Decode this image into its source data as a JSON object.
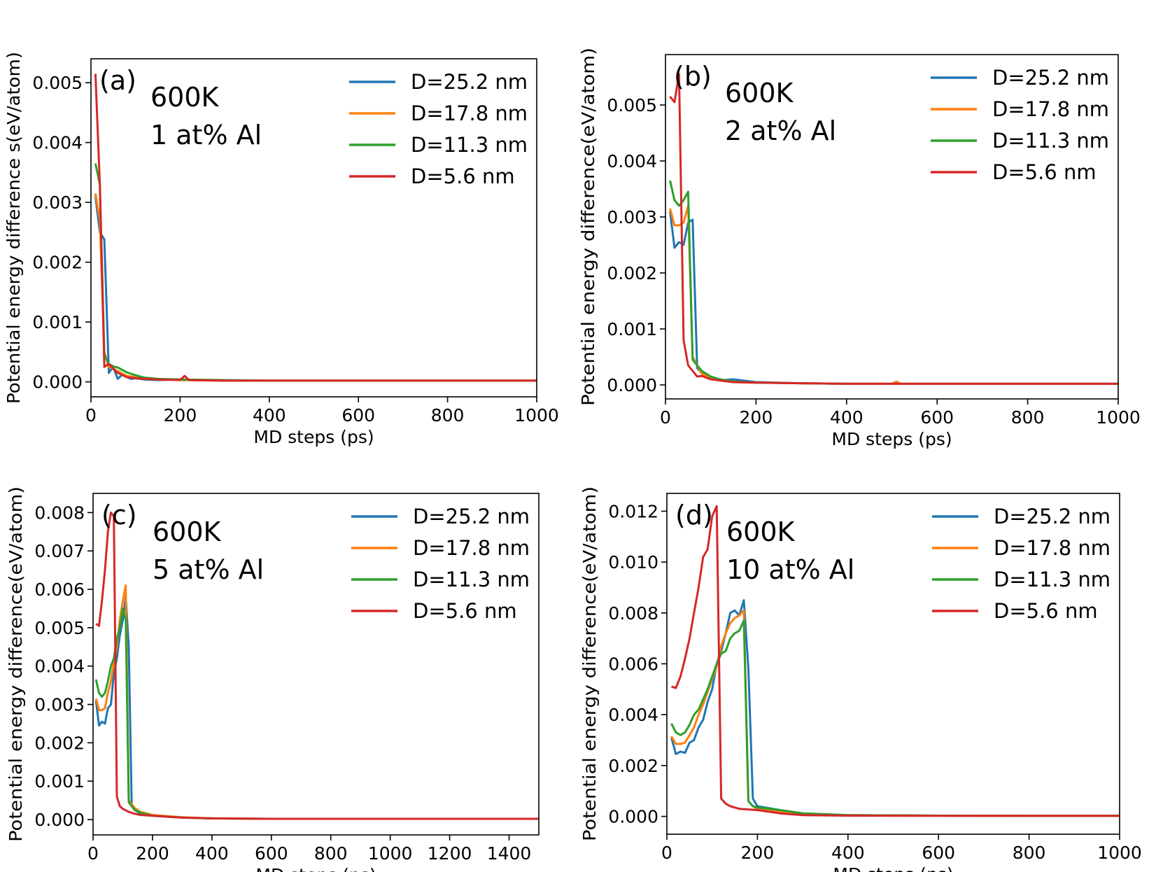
{
  "chart_data": [
    {
      "type": "line",
      "panel_label": "(a)",
      "annotation": [
        "600K",
        "1 at% Al"
      ],
      "xlabel": "MD steps (ps)",
      "ylabel": "Potential energy difference s(eV/atom)",
      "xlim": [
        0,
        1000
      ],
      "ylim": [
        -0.00025,
        0.0054
      ],
      "xticks": [
        0,
        200,
        400,
        600,
        800,
        1000
      ],
      "xtick_labels": [
        "0",
        "200",
        "400",
        "600",
        "800",
        "1000"
      ],
      "yticks": [
        0,
        0.001,
        0.002,
        0.003,
        0.004,
        0.005
      ],
      "ytick_labels": [
        "0.000",
        "0.001",
        "0.002",
        "0.003",
        "0.004",
        "0.005"
      ],
      "legend_position": "top-right",
      "series": [
        {
          "name": "D=25.2 nm",
          "color": "#1f77b4",
          "x": [
            10,
            20,
            30,
            40,
            50,
            60,
            70,
            80,
            90,
            100,
            120,
            150,
            200,
            300,
            400,
            600,
            800,
            1000
          ],
          "y": [
            0.0031,
            0.0025,
            0.00238,
            0.00015,
            0.00025,
            5e-05,
            0.00012,
            8e-05,
            5e-05,
            6e-05,
            4e-05,
            3e-05,
            4e-05,
            2e-05,
            2e-05,
            2e-05,
            2e-05,
            2e-05
          ]
        },
        {
          "name": "D=17.8 nm",
          "color": "#ff7f0e",
          "x": [
            10,
            20,
            30,
            40,
            50,
            60,
            70,
            80,
            100,
            120,
            150,
            200,
            300,
            400,
            600,
            800,
            1000
          ],
          "y": [
            0.00315,
            0.0027,
            0.0005,
            0.00025,
            0.00022,
            0.00018,
            0.00014,
            0.0001,
            8e-05,
            5e-05,
            4e-05,
            3e-05,
            2e-05,
            2e-05,
            2e-05,
            2e-05,
            2e-05
          ]
        },
        {
          "name": "D=11.3 nm",
          "color": "#2ca02c",
          "x": [
            10,
            20,
            30,
            40,
            50,
            60,
            70,
            80,
            100,
            120,
            150,
            200,
            300,
            400,
            600,
            800,
            1000
          ],
          "y": [
            0.00365,
            0.0033,
            0.00045,
            0.0003,
            0.00026,
            0.00024,
            0.0002,
            0.00016,
            0.00011,
            7e-05,
            5e-05,
            4e-05,
            3e-05,
            2e-05,
            2e-05,
            2e-05,
            2e-05
          ]
        },
        {
          "name": "D=5.6 nm",
          "color": "#d62728",
          "x": [
            10,
            20,
            30,
            40,
            50,
            60,
            80,
            100,
            150,
            200,
            210,
            220,
            300,
            400,
            600,
            800,
            1000
          ],
          "y": [
            0.00515,
            0.0033,
            0.00025,
            0.0003,
            0.00022,
            0.00015,
            8e-05,
            6e-05,
            4e-05,
            3e-05,
            0.0001,
            3e-05,
            2e-05,
            2e-05,
            2e-05,
            2e-05,
            2e-05
          ]
        }
      ]
    },
    {
      "type": "line",
      "panel_label": "(b)",
      "annotation": [
        "600K",
        "2 at% Al"
      ],
      "xlabel": "MD steps (ps)",
      "ylabel": "Potential energy difference(eV/atom)",
      "xlim": [
        0,
        1000
      ],
      "ylim": [
        -0.00025,
        0.0059
      ],
      "xticks": [
        0,
        200,
        400,
        600,
        800,
        1000
      ],
      "xtick_labels": [
        "0",
        "200",
        "400",
        "600",
        "800",
        "1000"
      ],
      "yticks": [
        0,
        0.001,
        0.002,
        0.003,
        0.004,
        0.005
      ],
      "ytick_labels": [
        "0.000",
        "0.001",
        "0.002",
        "0.003",
        "0.004",
        "0.005"
      ],
      "legend_position": "top-right",
      "series": [
        {
          "name": "D=25.2 nm",
          "color": "#1f77b4",
          "x": [
            10,
            20,
            30,
            40,
            50,
            60,
            70,
            80,
            90,
            100,
            120,
            150,
            200,
            300,
            400,
            600,
            800,
            1000
          ],
          "y": [
            0.0031,
            0.00245,
            0.00255,
            0.0025,
            0.0029,
            0.00295,
            0.0003,
            0.00022,
            0.00018,
            0.00012,
            8e-05,
            0.0001,
            5e-05,
            3e-05,
            2e-05,
            2e-05,
            2e-05,
            2e-05
          ]
        },
        {
          "name": "D=17.8 nm",
          "color": "#ff7f0e",
          "x": [
            10,
            20,
            30,
            40,
            50,
            60,
            70,
            80,
            100,
            120,
            150,
            200,
            300,
            400,
            500,
            510,
            520,
            600,
            800,
            1000
          ],
          "y": [
            0.00315,
            0.00285,
            0.00285,
            0.0029,
            0.0032,
            0.0005,
            0.00035,
            0.0002,
            0.00012,
            8e-05,
            5e-05,
            4e-05,
            3e-05,
            2e-05,
            2e-05,
            6e-05,
            2e-05,
            2e-05,
            2e-05,
            2e-05
          ]
        },
        {
          "name": "D=11.3 nm",
          "color": "#2ca02c",
          "x": [
            10,
            20,
            30,
            40,
            50,
            60,
            70,
            80,
            100,
            120,
            150,
            200,
            300,
            400,
            600,
            800,
            1000
          ],
          "y": [
            0.00365,
            0.0033,
            0.0032,
            0.0033,
            0.00345,
            0.00045,
            0.00035,
            0.00025,
            0.00015,
            0.0001,
            6e-05,
            4e-05,
            3e-05,
            2e-05,
            2e-05,
            2e-05,
            2e-05
          ]
        },
        {
          "name": "D=5.6 nm",
          "color": "#d62728",
          "x": [
            10,
            20,
            30,
            40,
            50,
            60,
            70,
            80,
            100,
            120,
            150,
            200,
            300,
            400,
            600,
            800,
            1000
          ],
          "y": [
            0.00515,
            0.00505,
            0.00555,
            0.0008,
            0.00035,
            0.00025,
            0.00015,
            0.00016,
            0.0001,
            8e-05,
            5e-05,
            4e-05,
            3e-05,
            2e-05,
            2e-05,
            2e-05,
            2e-05
          ]
        }
      ]
    },
    {
      "type": "line",
      "panel_label": "(c)",
      "annotation": [
        "600K",
        "5 at% Al"
      ],
      "xlabel": "MD steps (ps)",
      "ylabel": "Potential energy difference(eV/atom)",
      "xlim": [
        0,
        1500
      ],
      "ylim": [
        -0.0004,
        0.0085
      ],
      "xticks": [
        0,
        200,
        400,
        600,
        800,
        1000,
        1200,
        1400
      ],
      "xtick_labels": [
        "0",
        "200",
        "400",
        "600",
        "800",
        "1000",
        "1200",
        "1400"
      ],
      "yticks": [
        0,
        0.001,
        0.002,
        0.003,
        0.004,
        0.005,
        0.006,
        0.007,
        0.008
      ],
      "ytick_labels": [
        "0.000",
        "0.001",
        "0.002",
        "0.003",
        "0.004",
        "0.005",
        "0.006",
        "0.007",
        "0.008"
      ],
      "legend_position": "top-right",
      "series": [
        {
          "name": "D=25.2 nm",
          "color": "#1f77b4",
          "x": [
            10,
            20,
            30,
            40,
            50,
            60,
            70,
            80,
            90,
            100,
            110,
            120,
            130,
            140,
            160,
            200,
            300,
            400,
            600,
            800,
            1000,
            1200,
            1500
          ],
          "y": [
            0.0031,
            0.00245,
            0.00255,
            0.0025,
            0.0029,
            0.003,
            0.0038,
            0.0042,
            0.0048,
            0.0052,
            0.0058,
            0.0045,
            0.0004,
            0.00025,
            0.00015,
            0.0001,
            5e-05,
            3e-05,
            2e-05,
            2e-05,
            2e-05,
            2e-05,
            2e-05
          ]
        },
        {
          "name": "D=17.8 nm",
          "color": "#ff7f0e",
          "x": [
            10,
            20,
            30,
            40,
            50,
            60,
            70,
            80,
            90,
            100,
            110,
            120,
            130,
            140,
            160,
            200,
            300,
            400,
            600,
            800,
            1000,
            1200,
            1500
          ],
          "y": [
            0.00315,
            0.00285,
            0.00285,
            0.0029,
            0.0033,
            0.0036,
            0.0041,
            0.0045,
            0.0052,
            0.0057,
            0.0061,
            0.0005,
            0.0004,
            0.0003,
            0.0002,
            0.00012,
            6e-05,
            3e-05,
            2e-05,
            2e-05,
            2e-05,
            2e-05,
            2e-05
          ]
        },
        {
          "name": "D=11.3 nm",
          "color": "#2ca02c",
          "x": [
            10,
            20,
            30,
            40,
            50,
            60,
            70,
            80,
            90,
            100,
            110,
            120,
            130,
            140,
            160,
            200,
            300,
            400,
            600,
            800,
            1000,
            1200,
            1500
          ],
          "y": [
            0.00365,
            0.0033,
            0.0032,
            0.0033,
            0.0036,
            0.004,
            0.0042,
            0.0047,
            0.005,
            0.0055,
            0.0052,
            0.00045,
            0.00035,
            0.00025,
            0.00018,
            0.0001,
            5e-05,
            3e-05,
            2e-05,
            2e-05,
            2e-05,
            2e-05,
            2e-05
          ]
        },
        {
          "name": "D=5.6 nm",
          "color": "#d62728",
          "x": [
            10,
            20,
            30,
            40,
            50,
            60,
            70,
            80,
            90,
            100,
            120,
            140,
            160,
            200,
            300,
            400,
            600,
            800,
            1000,
            1200,
            1500
          ],
          "y": [
            0.0051,
            0.00505,
            0.0057,
            0.0065,
            0.0075,
            0.008,
            0.0079,
            0.0006,
            0.00035,
            0.00028,
            0.0002,
            0.00015,
            0.00012,
            0.0001,
            5e-05,
            3e-05,
            2e-05,
            2e-05,
            2e-05,
            2e-05,
            2e-05
          ]
        }
      ]
    },
    {
      "type": "line",
      "panel_label": "(d)",
      "annotation": [
        "600K",
        "10 at% Al"
      ],
      "xlabel": "MD steps (ps)",
      "ylabel": "Potential energy difference(eV/atom)",
      "xlim": [
        0,
        1000
      ],
      "ylim": [
        -0.0007,
        0.0127
      ],
      "xticks": [
        0,
        200,
        400,
        600,
        800,
        1000
      ],
      "xtick_labels": [
        "0",
        "200",
        "400",
        "600",
        "800",
        "1000"
      ],
      "yticks": [
        0,
        0.002,
        0.004,
        0.006,
        0.008,
        0.01,
        0.012
      ],
      "ytick_labels": [
        "0.000",
        "0.002",
        "0.004",
        "0.006",
        "0.008",
        "0.010",
        "0.012"
      ],
      "legend_position": "top-right",
      "series": [
        {
          "name": "D=25.2 nm",
          "color": "#1f77b4",
          "x": [
            10,
            20,
            30,
            40,
            50,
            60,
            70,
            80,
            90,
            100,
            110,
            120,
            130,
            140,
            150,
            160,
            170,
            180,
            190,
            200,
            250,
            300,
            400,
            600,
            800,
            1000
          ],
          "y": [
            0.0031,
            0.00245,
            0.00255,
            0.0025,
            0.0029,
            0.003,
            0.0035,
            0.0038,
            0.0045,
            0.005,
            0.006,
            0.0065,
            0.0072,
            0.008,
            0.0081,
            0.0079,
            0.0085,
            0.0058,
            0.0007,
            0.0004,
            0.00025,
            0.00012,
            5e-05,
            3e-05,
            2e-05,
            2e-05
          ]
        },
        {
          "name": "D=17.8 nm",
          "color": "#ff7f0e",
          "x": [
            10,
            20,
            30,
            40,
            50,
            60,
            70,
            80,
            90,
            100,
            110,
            120,
            130,
            140,
            150,
            160,
            170,
            180,
            190,
            200,
            250,
            300,
            400,
            600,
            800,
            1000
          ],
          "y": [
            0.00315,
            0.00285,
            0.00285,
            0.0029,
            0.0032,
            0.0035,
            0.004,
            0.0044,
            0.0049,
            0.0054,
            0.0059,
            0.0067,
            0.0072,
            0.0076,
            0.0078,
            0.0079,
            0.0081,
            0.0006,
            0.0004,
            0.0003,
            0.0002,
            0.0001,
            5e-05,
            3e-05,
            2e-05,
            2e-05
          ]
        },
        {
          "name": "D=11.3 nm",
          "color": "#2ca02c",
          "x": [
            10,
            20,
            30,
            40,
            50,
            60,
            70,
            80,
            90,
            100,
            110,
            120,
            130,
            140,
            150,
            160,
            170,
            180,
            190,
            200,
            250,
            300,
            400,
            600,
            800,
            1000
          ],
          "y": [
            0.00365,
            0.0033,
            0.0032,
            0.0033,
            0.0036,
            0.004,
            0.0042,
            0.0046,
            0.005,
            0.0055,
            0.006,
            0.0064,
            0.0065,
            0.007,
            0.0072,
            0.0073,
            0.0077,
            0.0006,
            0.0004,
            0.00035,
            0.00025,
            0.00012,
            5e-05,
            3e-05,
            2e-05,
            2e-05
          ]
        },
        {
          "name": "D=5.6 nm",
          "color": "#d62728",
          "x": [
            10,
            20,
            30,
            40,
            50,
            60,
            70,
            80,
            90,
            100,
            110,
            120,
            130,
            140,
            160,
            200,
            250,
            300,
            400,
            600,
            800,
            1000
          ],
          "y": [
            0.0051,
            0.00505,
            0.0055,
            0.0062,
            0.007,
            0.008,
            0.009,
            0.0102,
            0.0105,
            0.0118,
            0.0122,
            0.0007,
            0.0005,
            0.0004,
            0.0003,
            0.00025,
            0.00012,
            5e-05,
            3e-05,
            2e-05,
            2e-05,
            2e-05
          ]
        }
      ]
    }
  ]
}
